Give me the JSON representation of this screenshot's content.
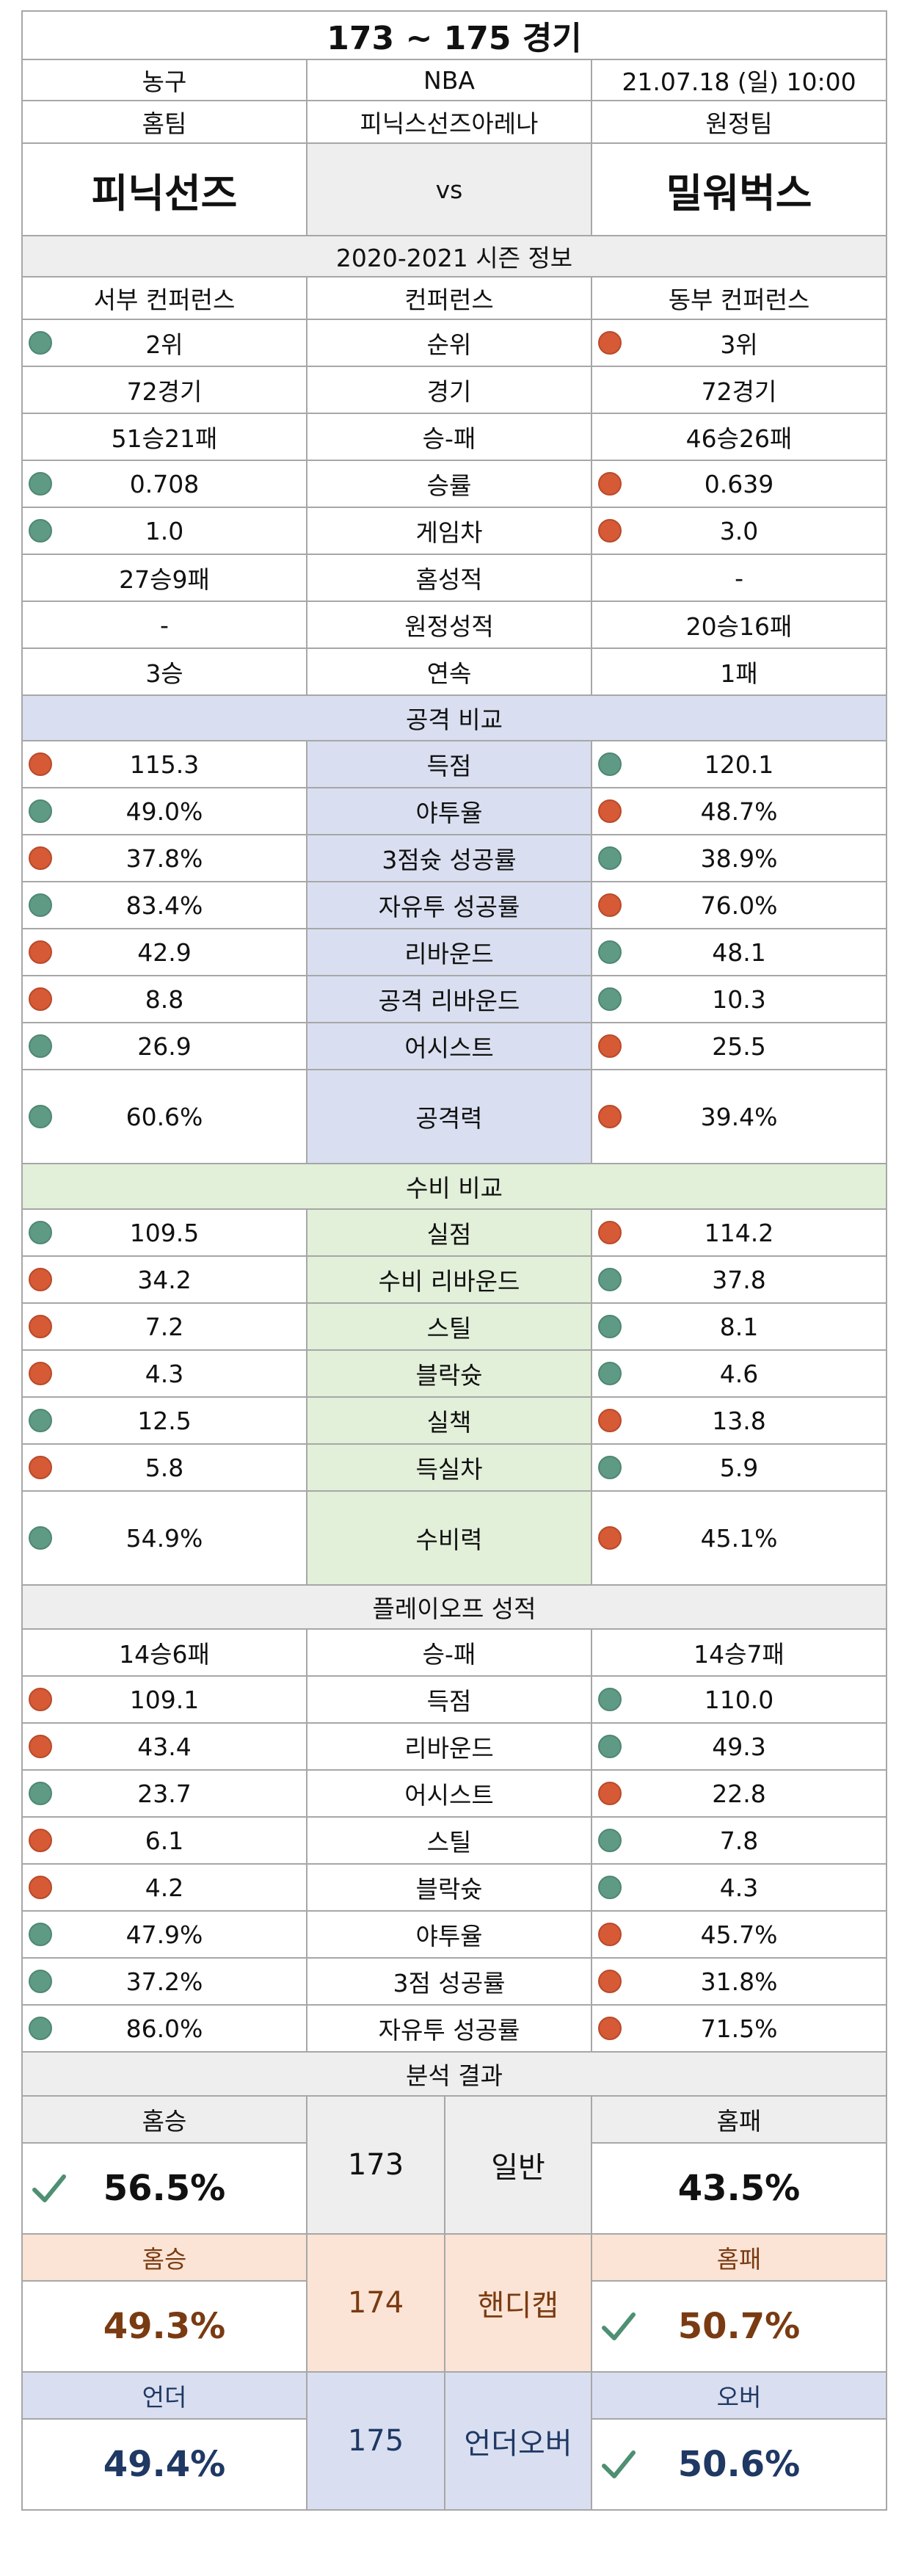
{
  "title": "173 ~ 175 경기",
  "info": {
    "sport": "농구",
    "league": "NBA",
    "datetime": "21.07.18 (일) 10:00"
  },
  "labels": {
    "home": "홈팀",
    "arena": "피닉스선즈아레나",
    "away": "원정팀"
  },
  "teams": {
    "home": "피닉선즈",
    "vs": "vs",
    "away": "밀워벅스"
  },
  "season": {
    "header": "2020-2021 시즌 정보",
    "conf_row": {
      "home": "서부 컨퍼런스",
      "label": "컨퍼런스",
      "away": "동부 컨퍼런스"
    },
    "rows": [
      {
        "home": "2위",
        "label": "순위",
        "away": "3위",
        "home_dot": "green",
        "away_dot": "red"
      },
      {
        "home": "72경기",
        "label": "경기",
        "away": "72경기",
        "home_dot": "",
        "away_dot": ""
      },
      {
        "home": "51승21패",
        "label": "승-패",
        "away": "46승26패",
        "home_dot": "",
        "away_dot": ""
      },
      {
        "home": "0.708",
        "label": "승률",
        "away": "0.639",
        "home_dot": "green",
        "away_dot": "red"
      },
      {
        "home": "1.0",
        "label": "게임차",
        "away": "3.0",
        "home_dot": "green",
        "away_dot": "red"
      },
      {
        "home": "27승9패",
        "label": "홈성적",
        "away": "-",
        "home_dot": "",
        "away_dot": ""
      },
      {
        "home": "-",
        "label": "원정성적",
        "away": "20승16패",
        "home_dot": "",
        "away_dot": ""
      },
      {
        "home": "3승",
        "label": "연속",
        "away": "1패",
        "home_dot": "",
        "away_dot": ""
      }
    ]
  },
  "offense": {
    "header": "공격 비교",
    "rows": [
      {
        "home": "115.3",
        "label": "득점",
        "away": "120.1",
        "home_dot": "red",
        "away_dot": "green"
      },
      {
        "home": "49.0%",
        "label": "야투율",
        "away": "48.7%",
        "home_dot": "green",
        "away_dot": "red"
      },
      {
        "home": "37.8%",
        "label": "3점슛 성공률",
        "away": "38.9%",
        "home_dot": "red",
        "away_dot": "green"
      },
      {
        "home": "83.4%",
        "label": "자유투 성공률",
        "away": "76.0%",
        "home_dot": "green",
        "away_dot": "red"
      },
      {
        "home": "42.9",
        "label": "리바운드",
        "away": "48.1",
        "home_dot": "red",
        "away_dot": "green"
      },
      {
        "home": "8.8",
        "label": "공격 리바운드",
        "away": "10.3",
        "home_dot": "red",
        "away_dot": "green"
      },
      {
        "home": "26.9",
        "label": "어시스트",
        "away": "25.5",
        "home_dot": "green",
        "away_dot": "red"
      }
    ],
    "total": {
      "home": "60.6%",
      "label": "공격력",
      "away": "39.4%",
      "home_dot": "green",
      "away_dot": "red"
    }
  },
  "defense": {
    "header": "수비 비교",
    "rows": [
      {
        "home": "109.5",
        "label": "실점",
        "away": "114.2",
        "home_dot": "green",
        "away_dot": "red"
      },
      {
        "home": "34.2",
        "label": "수비 리바운드",
        "away": "37.8",
        "home_dot": "red",
        "away_dot": "green"
      },
      {
        "home": "7.2",
        "label": "스틸",
        "away": "8.1",
        "home_dot": "red",
        "away_dot": "green"
      },
      {
        "home": "4.3",
        "label": "블락슛",
        "away": "4.6",
        "home_dot": "red",
        "away_dot": "green"
      },
      {
        "home": "12.5",
        "label": "실책",
        "away": "13.8",
        "home_dot": "green",
        "away_dot": "red"
      },
      {
        "home": "5.8",
        "label": "득실차",
        "away": "5.9",
        "home_dot": "red",
        "away_dot": "green"
      }
    ],
    "total": {
      "home": "54.9%",
      "label": "수비력",
      "away": "45.1%",
      "home_dot": "green",
      "away_dot": "red"
    }
  },
  "playoff": {
    "header": "플레이오프 성적",
    "record": {
      "home": "14승6패",
      "label": "승-패",
      "away": "14승7패"
    },
    "rows": [
      {
        "home": "109.1",
        "label": "득점",
        "away": "110.0",
        "home_dot": "red",
        "away_dot": "green"
      },
      {
        "home": "43.4",
        "label": "리바운드",
        "away": "49.3",
        "home_dot": "red",
        "away_dot": "green"
      },
      {
        "home": "23.7",
        "label": "어시스트",
        "away": "22.8",
        "home_dot": "green",
        "away_dot": "red"
      },
      {
        "home": "6.1",
        "label": "스틸",
        "away": "7.8",
        "home_dot": "red",
        "away_dot": "green"
      },
      {
        "home": "4.2",
        "label": "블락슛",
        "away": "4.3",
        "home_dot": "red",
        "away_dot": "green"
      },
      {
        "home": "47.9%",
        "label": "야투율",
        "away": "45.7%",
        "home_dot": "green",
        "away_dot": "red"
      },
      {
        "home": "37.2%",
        "label": "3점 성공률",
        "away": "31.8%",
        "home_dot": "green",
        "away_dot": "red"
      },
      {
        "home": "86.0%",
        "label": "자유투 성공률",
        "away": "71.5%",
        "home_dot": "green",
        "away_dot": "red"
      }
    ]
  },
  "analysis": {
    "header": "분석 결과",
    "blocks": [
      {
        "num": "173",
        "type": "일반",
        "left_head": "홈승",
        "left_val": "56.5%",
        "right_head": "홈패",
        "right_val": "43.5%",
        "pick": "left"
      },
      {
        "num": "174",
        "type": "핸디캡",
        "left_head": "홈승",
        "left_val": "49.3%",
        "right_head": "홈패",
        "right_val": "50.7%",
        "pick": "right"
      },
      {
        "num": "175",
        "type": "언더오버",
        "left_head": "언더",
        "left_val": "49.4%",
        "right_head": "오버",
        "right_val": "50.6%",
        "pick": "right"
      }
    ]
  },
  "colors": {
    "green_dot": "#5f9b84",
    "red_dot": "#d65a36",
    "check": "#4f8f73",
    "offense_bg": "#d9dff0",
    "defense_bg": "#e2efd9",
    "handicap_bg": "#fbe4d5",
    "section_bg": "#eeeeee"
  }
}
